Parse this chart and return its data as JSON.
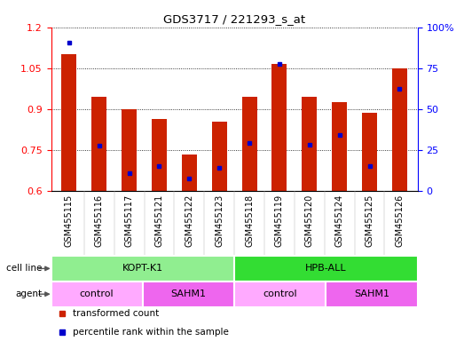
{
  "title": "GDS3717 / 221293_s_at",
  "samples": [
    "GSM455115",
    "GSM455116",
    "GSM455117",
    "GSM455121",
    "GSM455122",
    "GSM455123",
    "GSM455118",
    "GSM455119",
    "GSM455120",
    "GSM455124",
    "GSM455125",
    "GSM455126"
  ],
  "red_values": [
    1.1,
    0.945,
    0.9,
    0.865,
    0.735,
    0.855,
    0.945,
    1.065,
    0.945,
    0.925,
    0.885,
    1.05
  ],
  "blue_values": [
    1.145,
    0.765,
    0.665,
    0.69,
    0.645,
    0.685,
    0.775,
    1.065,
    0.77,
    0.805,
    0.69,
    0.975
  ],
  "ylim_left": [
    0.6,
    1.2
  ],
  "ylim_right": [
    0,
    100
  ],
  "yticks_left": [
    0.6,
    0.75,
    0.9,
    1.05,
    1.2
  ],
  "yticks_right": [
    0,
    25,
    50,
    75,
    100
  ],
  "ytick_labels_left": [
    "0.6",
    "0.75",
    "0.9",
    "1.05",
    "1.2"
  ],
  "ytick_labels_right": [
    "0",
    "25",
    "50",
    "75",
    "100%"
  ],
  "cell_line_groups": [
    {
      "label": "KOPT-K1",
      "start": 0,
      "end": 6,
      "color": "#90EE90"
    },
    {
      "label": "HPB-ALL",
      "start": 6,
      "end": 12,
      "color": "#33DD33"
    }
  ],
  "agent_groups": [
    {
      "label": "control",
      "start": 0,
      "end": 3,
      "color": "#FFAAFF"
    },
    {
      "label": "SAHM1",
      "start": 3,
      "end": 6,
      "color": "#EE66EE"
    },
    {
      "label": "control",
      "start": 6,
      "end": 9,
      "color": "#FFAAFF"
    },
    {
      "label": "SAHM1",
      "start": 9,
      "end": 12,
      "color": "#EE66EE"
    }
  ],
  "bar_color": "#CC2200",
  "blue_color": "#0000CC",
  "bar_width": 0.5,
  "legend_items": [
    "transformed count",
    "percentile rank within the sample"
  ],
  "cell_line_label": "cell line",
  "agent_label": "agent"
}
